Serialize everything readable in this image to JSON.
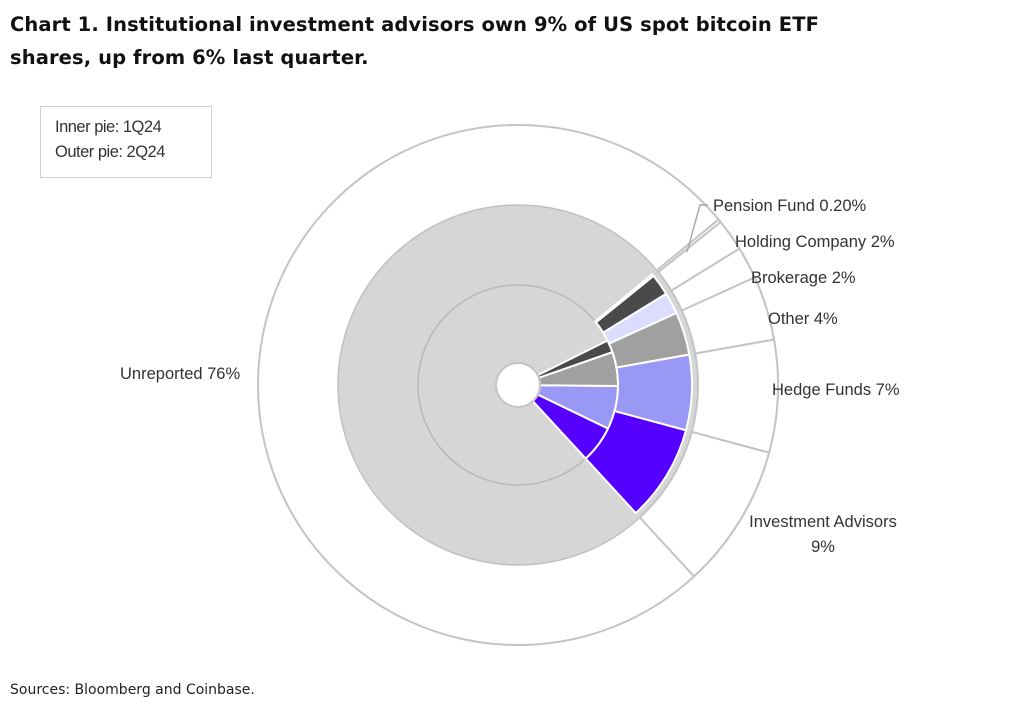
{
  "chart_data": {
    "type": "pie",
    "variant": "nested donut",
    "title_lines": [
      "Chart 1. Institutional investment advisors own 9% of US spot bitcoin ETF",
      "shares, up from 6% last quarter."
    ],
    "legend": [
      "Inner pie: 1Q24",
      "Outer pie: 2Q24"
    ],
    "legend_placement": "top-left",
    "categories": [
      "Investment Advisors",
      "Hedge Funds",
      "Other",
      "Brokerage",
      "Holding Company",
      "Pension Fund",
      "Unreported"
    ],
    "colors": [
      "#5500ff",
      "#9999f5",
      "#a0a0a0",
      "#dcdcff",
      "#4a4a4a",
      "#b8b8b8",
      "#d6d6d6"
    ],
    "series": [
      {
        "name": "1Q24",
        "ring": "inner",
        "values": [
          6,
          7,
          5.5,
          0,
          2,
          0,
          79.5
        ]
      },
      {
        "name": "2Q24",
        "ring": "outer",
        "values": [
          9,
          7,
          4,
          2,
          2,
          0.2,
          76
        ]
      }
    ],
    "labels": [
      {
        "category": "Pension Fund",
        "text": "Pension Fund 0.20%"
      },
      {
        "category": "Holding Company",
        "text": "Holding Company 2%"
      },
      {
        "category": "Brokerage",
        "text": "Brokerage 2%"
      },
      {
        "category": "Other",
        "text": "Other 4%"
      },
      {
        "category": "Hedge Funds",
        "text": "Hedge Funds 7%"
      },
      {
        "category": "Investment Advisors",
        "text": "Investment Advisors",
        "text2": "9%"
      },
      {
        "category": "Unreported",
        "text": "Unreported 76%"
      }
    ]
  },
  "source": "Sources: Bloomberg and Coinbase."
}
